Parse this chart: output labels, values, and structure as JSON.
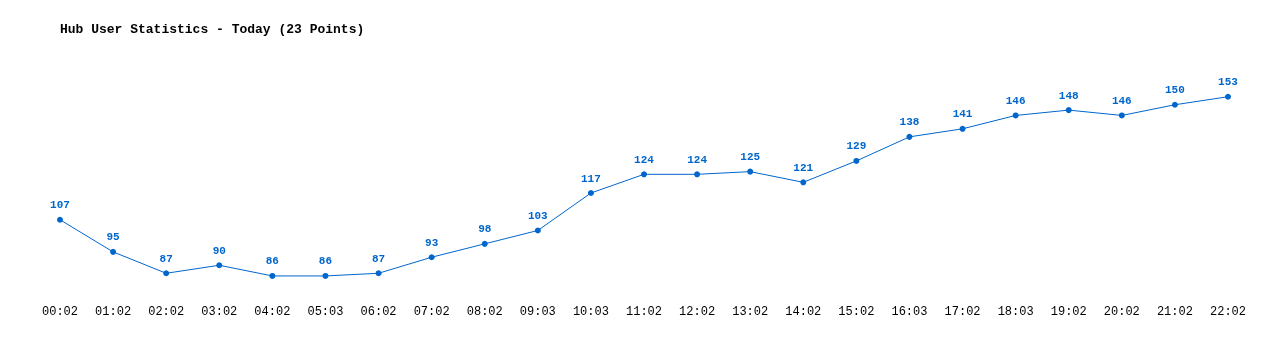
{
  "chart_data": {
    "type": "line",
    "title": "Hub User Statistics - Today (23 Points)",
    "categories": [
      "00:02",
      "01:02",
      "02:02",
      "03:02",
      "04:02",
      "05:03",
      "06:02",
      "07:02",
      "08:02",
      "09:03",
      "10:03",
      "11:02",
      "12:02",
      "13:02",
      "14:02",
      "15:02",
      "16:03",
      "17:02",
      "18:03",
      "19:02",
      "20:02",
      "21:02",
      "22:02"
    ],
    "series": [
      {
        "color": "#0066cc",
        "values": [
          107,
          95,
          87,
          90,
          86,
          86,
          87,
          93,
          98,
          103,
          117,
          124,
          124,
          125,
          121,
          129,
          138,
          141,
          146,
          148,
          146,
          150,
          153
        ]
      }
    ],
    "data_labels": true,
    "marker": "circle",
    "line_style": "solid",
    "grid": false
  }
}
